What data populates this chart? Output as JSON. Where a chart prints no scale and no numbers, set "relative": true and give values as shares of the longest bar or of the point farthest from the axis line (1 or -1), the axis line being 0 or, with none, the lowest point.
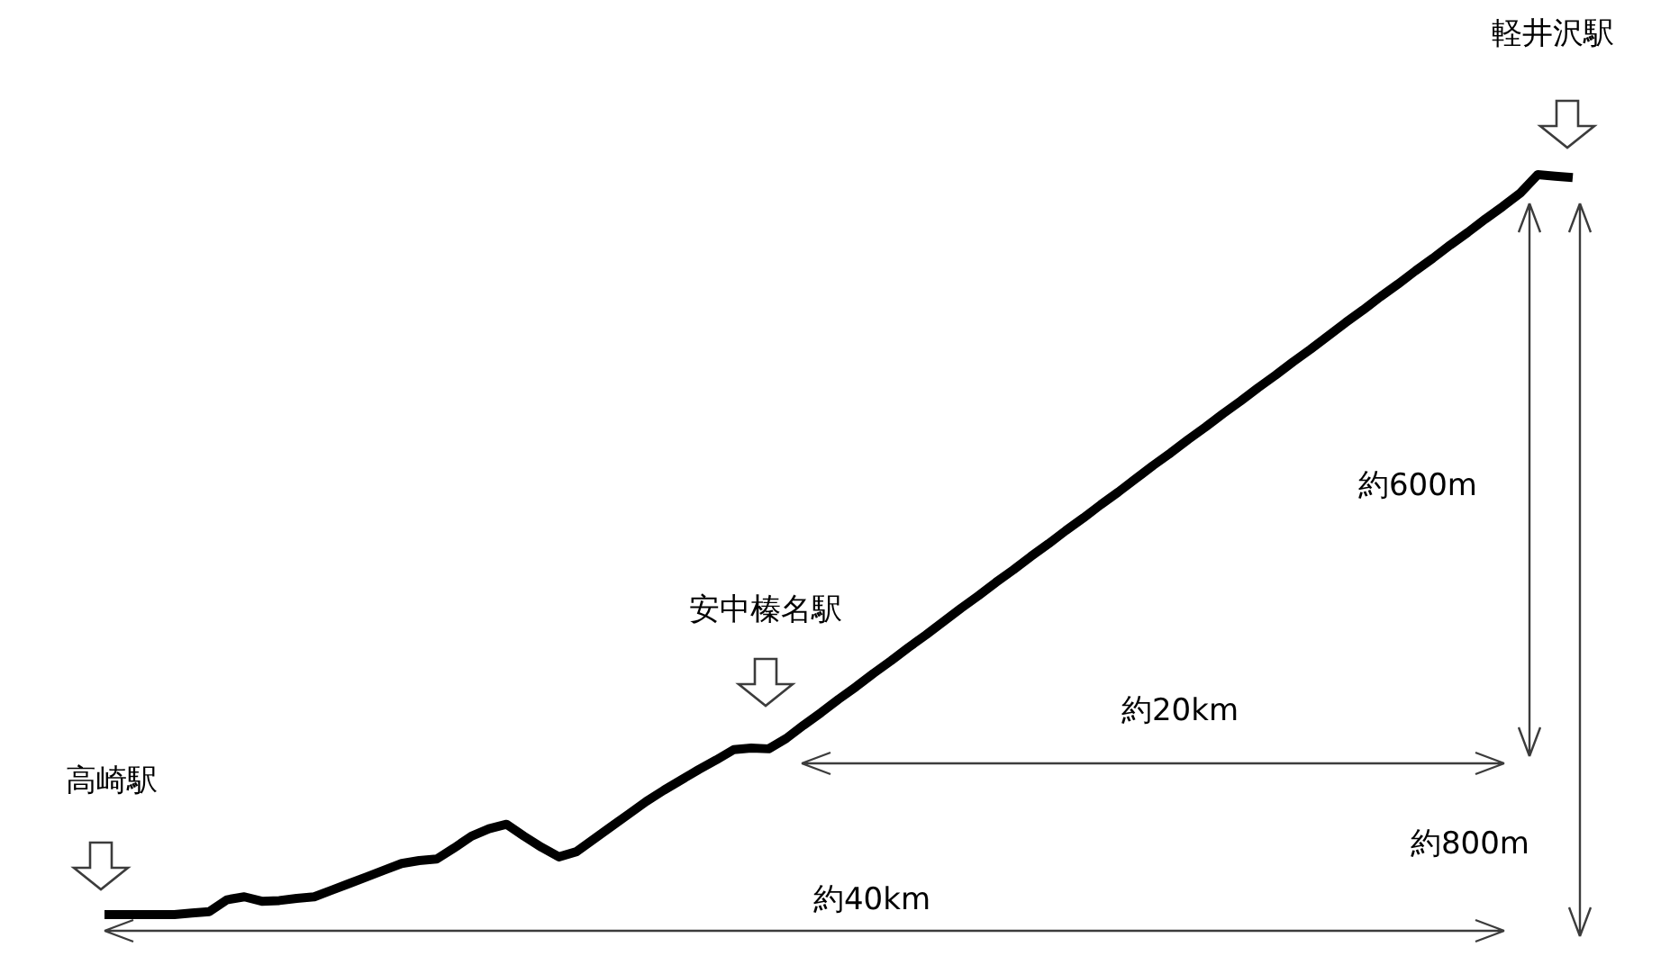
{
  "chart_data": {
    "type": "line",
    "relative": true,
    "line_style": "solid",
    "categories": [
      null,
      null,
      null,
      null,
      null,
      null,
      null,
      null,
      null,
      null,
      null,
      null,
      null,
      null,
      null,
      null,
      null,
      null,
      null,
      null,
      null,
      null,
      null,
      null,
      null,
      null,
      null,
      null,
      null,
      null,
      null,
      null,
      null,
      null,
      null,
      null,
      null,
      null,
      null,
      null,
      null,
      null,
      null,
      null,
      null,
      null,
      null,
      null,
      null,
      null,
      null,
      null,
      null,
      null,
      null,
      null,
      null,
      null,
      null,
      null,
      null,
      null,
      null,
      null,
      null,
      null,
      null,
      null,
      null,
      null,
      null,
      null,
      null,
      null,
      null,
      null,
      null,
      null,
      null,
      null,
      null,
      null,
      null,
      null,
      null
    ],
    "series": [
      {
        "color": "#000000",
        "values": [
          0,
          0,
          0,
          0,
          0,
          0.002,
          0.004,
          0.02,
          0.024,
          0.018,
          0.019,
          0.022,
          0.024,
          0.033,
          0.042,
          0.051,
          0.06,
          0.069,
          0.073,
          0.075,
          0.09,
          0.106,
          0.116,
          0.122,
          0.106,
          0.091,
          0.078,
          0.085,
          0.102,
          0.119,
          0.136,
          0.153,
          0.168,
          0.182,
          0.196,
          0.209,
          0.223,
          0.225,
          0.224,
          0.238,
          0.256,
          0.273,
          0.291,
          0.308,
          0.326,
          0.343,
          0.361,
          0.378,
          0.396,
          0.414,
          0.431,
          0.449,
          0.466,
          0.484,
          0.501,
          0.519,
          0.536,
          0.554,
          0.571,
          0.589,
          0.607,
          0.624,
          0.642,
          0.659,
          0.677,
          0.694,
          0.712,
          0.729,
          0.747,
          0.764,
          0.782,
          0.8,
          0.817,
          0.835,
          0.852,
          0.87,
          0.887,
          0.905,
          0.922,
          0.94,
          0.957,
          0.975,
          1,
          0.998,
          0.996
        ]
      }
    ],
    "annotations": [
      "高崎駅",
      "安中榛名駅",
      "軽井沢駅",
      "約20km",
      "約40km",
      "約600m",
      "約800m"
    ]
  }
}
